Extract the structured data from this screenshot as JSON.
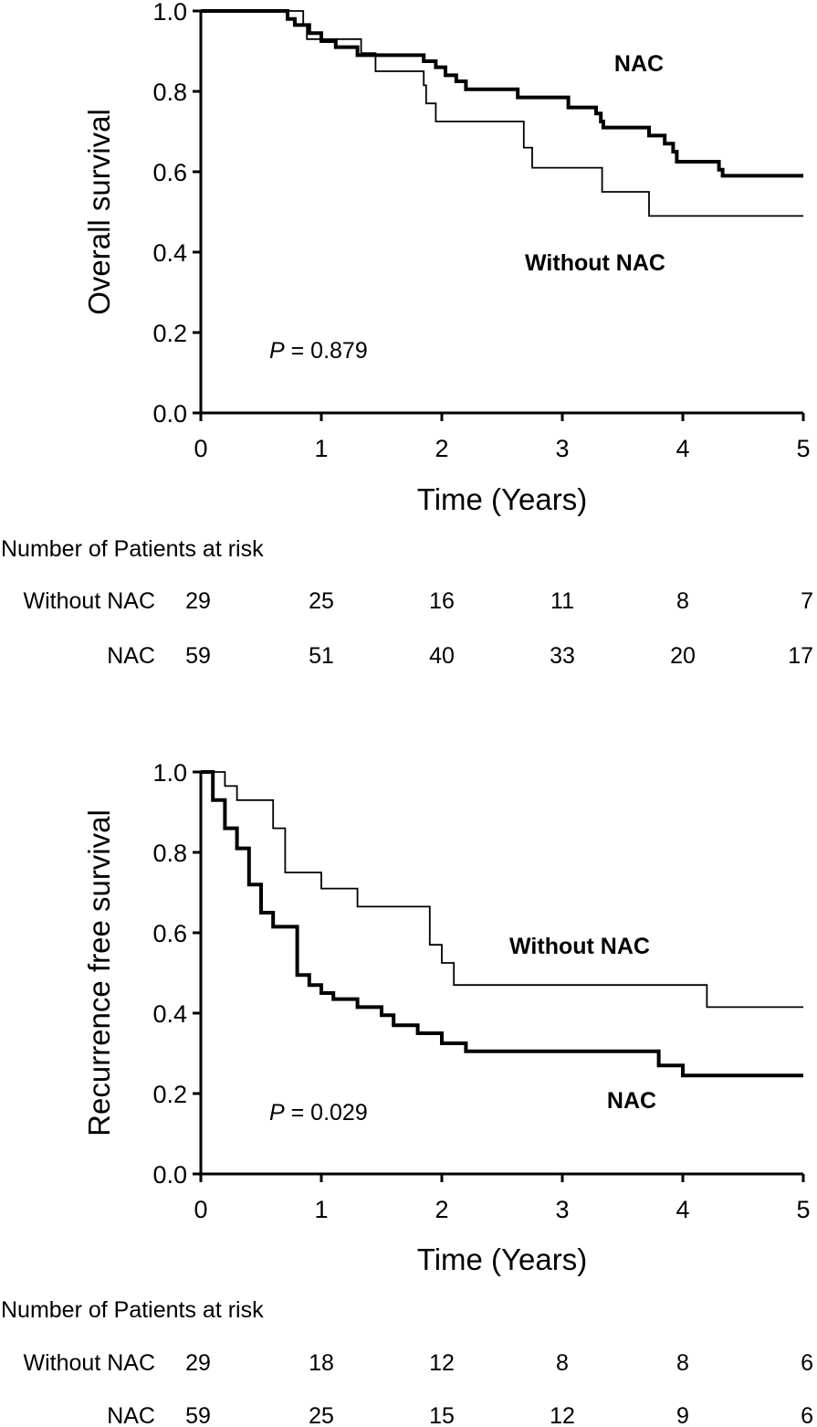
{
  "chart_data": [
    {
      "type": "line",
      "subtype": "kaplan-meier",
      "title": "",
      "xlabel": "Time (Years)",
      "ylabel": "Overall survival",
      "xlim": [
        0,
        5
      ],
      "ylim": [
        0,
        1
      ],
      "x_ticks": [
        "0",
        "1",
        "2",
        "3",
        "4",
        "5"
      ],
      "y_ticks": [
        "0.0",
        "0.2",
        "0.4",
        "0.6",
        "0.8",
        "1.0"
      ],
      "grid": false,
      "p_value": {
        "prefix": "P",
        "text": " = 0.879"
      },
      "series": [
        {
          "name": "NAC",
          "weight": "bold",
          "steps": [
            [
              0,
              1.0
            ],
            [
              0.72,
              0.98
            ],
            [
              0.78,
              0.965
            ],
            [
              0.9,
              0.945
            ],
            [
              1.0,
              0.925
            ],
            [
              1.12,
              0.91
            ],
            [
              1.3,
              0.89
            ],
            [
              1.85,
              0.875
            ],
            [
              1.95,
              0.86
            ],
            [
              2.03,
              0.84
            ],
            [
              2.12,
              0.825
            ],
            [
              2.2,
              0.805
            ],
            [
              2.63,
              0.785
            ],
            [
              3.05,
              0.76
            ],
            [
              3.28,
              0.745
            ],
            [
              3.32,
              0.725
            ],
            [
              3.34,
              0.71
            ],
            [
              3.72,
              0.69
            ],
            [
              3.85,
              0.67
            ],
            [
              3.92,
              0.65
            ],
            [
              3.95,
              0.625
            ],
            [
              4.3,
              0.605
            ],
            [
              4.33,
              0.59
            ],
            [
              5.0,
              0.59
            ]
          ]
        },
        {
          "name": "Without NAC",
          "weight": "thin",
          "steps": [
            [
              0,
              1.0
            ],
            [
              0.85,
              0.965
            ],
            [
              0.88,
              0.93
            ],
            [
              1.33,
              0.895
            ],
            [
              1.45,
              0.85
            ],
            [
              1.85,
              0.815
            ],
            [
              1.87,
              0.77
            ],
            [
              1.95,
              0.725
            ],
            [
              2.68,
              0.66
            ],
            [
              2.75,
              0.61
            ],
            [
              3.33,
              0.55
            ],
            [
              3.72,
              0.49
            ],
            [
              5.0,
              0.49
            ]
          ]
        }
      ],
      "risk_table": {
        "title": "Number of Patients at risk",
        "rows": [
          {
            "label": "Without NAC",
            "values": [
              "29",
              "25",
              "16",
              "11",
              "8",
              "7"
            ]
          },
          {
            "label": "NAC",
            "values": [
              "59",
              "51",
              "40",
              "33",
              "20",
              "17"
            ]
          }
        ]
      }
    },
    {
      "type": "line",
      "subtype": "kaplan-meier",
      "title": "",
      "xlabel": "Time (Years)",
      "ylabel": "Recurrence free survival",
      "xlim": [
        0,
        5
      ],
      "ylim": [
        0,
        1
      ],
      "x_ticks": [
        "0",
        "1",
        "2",
        "3",
        "4",
        "5"
      ],
      "y_ticks": [
        "0.0",
        "0.2",
        "0.4",
        "0.6",
        "0.8",
        "1.0"
      ],
      "grid": false,
      "p_value": {
        "prefix": "P",
        "text": " = 0.029"
      },
      "series": [
        {
          "name": "Without NAC",
          "weight": "thin",
          "steps": [
            [
              0,
              1.0
            ],
            [
              0.2,
              0.965
            ],
            [
              0.3,
              0.93
            ],
            [
              0.6,
              0.86
            ],
            [
              0.7,
              0.75
            ],
            [
              1.0,
              0.71
            ],
            [
              1.3,
              0.665
            ],
            [
              1.9,
              0.57
            ],
            [
              2.0,
              0.525
            ],
            [
              2.1,
              0.47
            ],
            [
              4.2,
              0.415
            ],
            [
              5.0,
              0.415
            ]
          ]
        },
        {
          "name": "NAC",
          "weight": "bold",
          "steps": [
            [
              0,
              1.0
            ],
            [
              0.1,
              0.93
            ],
            [
              0.2,
              0.86
            ],
            [
              0.3,
              0.81
            ],
            [
              0.4,
              0.72
            ],
            [
              0.5,
              0.65
            ],
            [
              0.6,
              0.615
            ],
            [
              0.8,
              0.495
            ],
            [
              0.9,
              0.47
            ],
            [
              1.0,
              0.45
            ],
            [
              1.1,
              0.435
            ],
            [
              1.3,
              0.415
            ],
            [
              1.5,
              0.395
            ],
            [
              1.6,
              0.37
            ],
            [
              1.8,
              0.35
            ],
            [
              2.0,
              0.325
            ],
            [
              2.2,
              0.305
            ],
            [
              3.8,
              0.27
            ],
            [
              4.0,
              0.245
            ],
            [
              5.0,
              0.245
            ]
          ]
        }
      ],
      "risk_table": {
        "title": "Number of Patients at risk",
        "rows": [
          {
            "label": "Without NAC",
            "values": [
              "29",
              "18",
              "12",
              "8",
              "8",
              "6"
            ]
          },
          {
            "label": "NAC",
            "values": [
              "59",
              "25",
              "15",
              "12",
              "9",
              "6"
            ]
          }
        ]
      }
    }
  ]
}
